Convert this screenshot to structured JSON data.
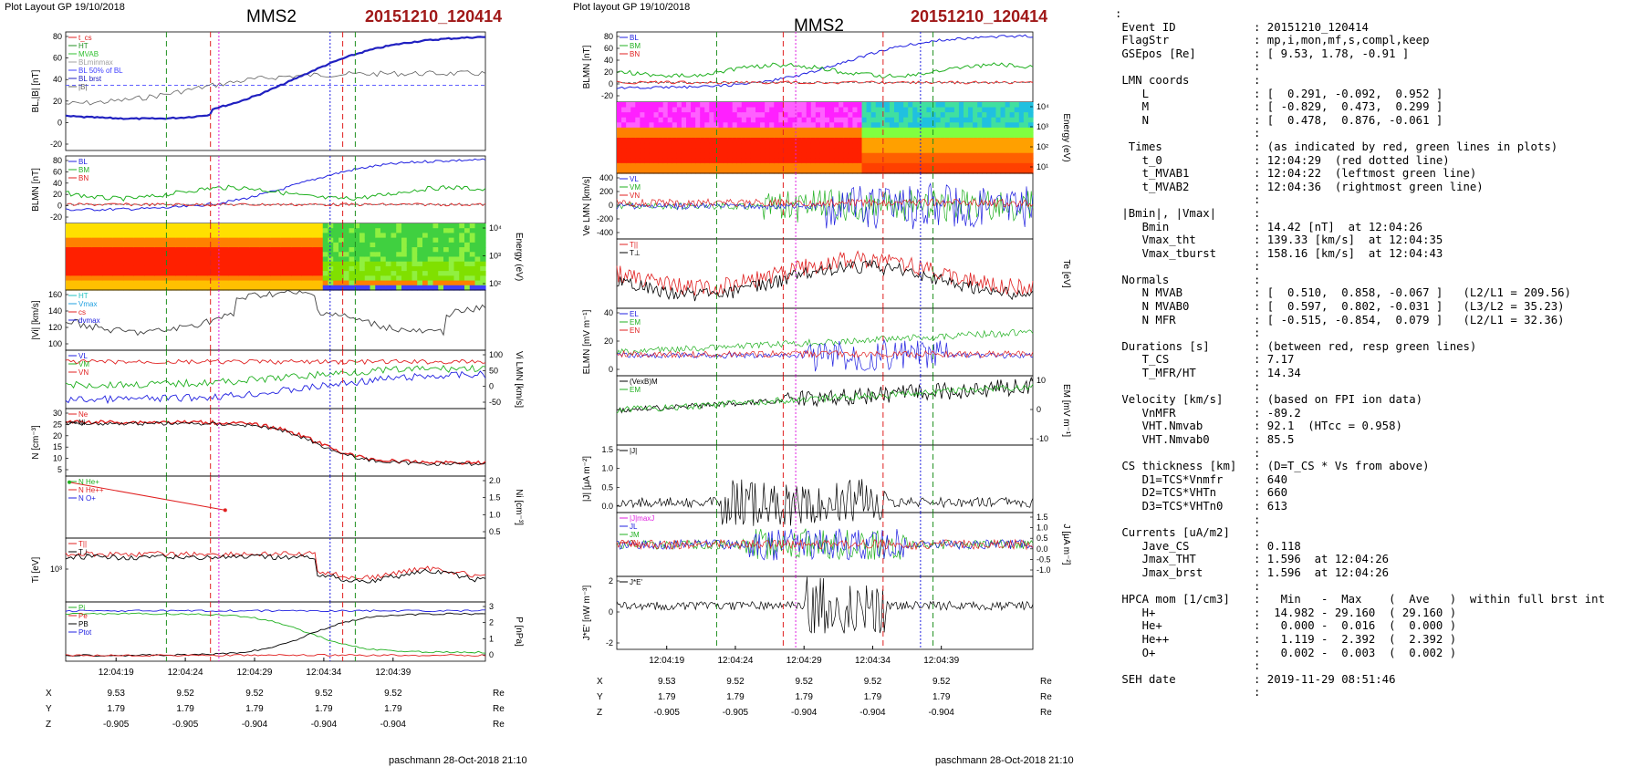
{
  "left_panel": {
    "header": "Plot Layout GP 19/10/2018",
    "spacecraft": "MMS2",
    "event": "20151210_120414",
    "footer": "paschmann 28-Oct-2018 21:10",
    "time_ticks": [
      "12:04:19",
      "12:04:24",
      "12:04:29",
      "12:04:34",
      "12:04:39"
    ],
    "ephem": [
      {
        "label": "X",
        "values": [
          "9.53",
          "9.52",
          "9.52",
          "9.52",
          "9.52"
        ],
        "unit": "Re"
      },
      {
        "label": "Y",
        "values": [
          "1.79",
          "1.79",
          "1.79",
          "1.79",
          "1.79"
        ],
        "unit": "Re"
      },
      {
        "label": "Z",
        "values": [
          "-0.905",
          "-0.905",
          "-0.904",
          "-0.904",
          "-0.904"
        ],
        "unit": "Re"
      }
    ],
    "panels": [
      {
        "id": "bl",
        "ylabel": "BL,|B| [nT]",
        "ticks": [
          "80",
          "60",
          "40",
          "20",
          "0",
          "-20"
        ],
        "legend": [
          {
            "text": "t_cs",
            "color": "#e02020"
          },
          {
            "text": "HT",
            "color": "#209020"
          },
          {
            "text": "MVAB",
            "color": "#30c030"
          },
          {
            "text": "BLminmax",
            "color": "#a0a0a0"
          },
          {
            "text": "BL 50% of BL",
            "color": "#4040ff"
          },
          {
            "text": "BL brst",
            "color": "#2020c0"
          },
          {
            "text": "|B|",
            "color": "#606060"
          }
        ]
      },
      {
        "id": "blmn",
        "ylabel": "BLMN [nT]",
        "ticks": [
          "80",
          "60",
          "40",
          "20",
          "0",
          "-20"
        ],
        "legend": [
          {
            "text": "BL",
            "color": "#2020e0"
          },
          {
            "text": "BM",
            "color": "#20b020"
          },
          {
            "text": "BN",
            "color": "#e02020"
          }
        ]
      },
      {
        "id": "spec",
        "ylabel": "Energy (eV)",
        "ticks": [
          "10⁴",
          "10³",
          "10²"
        ],
        "legend": []
      },
      {
        "id": "vi",
        "ylabel": "|Vi| [km/s]",
        "ticks": [
          "160",
          "140",
          "120",
          "100"
        ],
        "legend": [
          {
            "text": "HT",
            "color": "#20c0c0"
          },
          {
            "text": "Vmax",
            "color": "#20a0e0"
          },
          {
            "text": "cs",
            "color": "#e02020"
          },
          {
            "text": "dvmax",
            "color": "#2020e0"
          }
        ]
      },
      {
        "id": "vilmn",
        "ylabel": "Vi LMN [km/s]",
        "ticks": [
          "100",
          "50",
          "0",
          "-50"
        ],
        "legend": [
          {
            "text": "VL",
            "color": "#2020e0"
          },
          {
            "text": "VM",
            "color": "#20b020"
          },
          {
            "text": "VN",
            "color": "#e02020"
          }
        ]
      },
      {
        "id": "n",
        "ylabel": "N [cm⁻³]",
        "ticks": [
          "30",
          "25",
          "20",
          "15",
          "10",
          "5"
        ],
        "legend": [
          {
            "text": "Ne",
            "color": "#e02020"
          },
          {
            "text": "Ni",
            "color": "#000000"
          }
        ]
      },
      {
        "id": "ni",
        "ylabel": "Ni [cm⁻³]",
        "ticks": [
          "2.0",
          "1.5",
          "1.0",
          "0.5"
        ],
        "legend": [
          {
            "text": "N He+",
            "color": "#20b020"
          },
          {
            "text": "N He++",
            "color": "#e02020"
          },
          {
            "text": "N O+",
            "color": "#2020e0"
          }
        ]
      },
      {
        "id": "ti",
        "ylabel": "Ti [eV]",
        "ticks": [
          "10³"
        ],
        "legend": [
          {
            "text": "T||",
            "color": "#e02020"
          },
          {
            "text": "T⊥",
            "color": "#000000"
          }
        ]
      },
      {
        "id": "p",
        "ylabel": "P [nPa]",
        "ticks": [
          "3",
          "2",
          "1",
          "0"
        ],
        "legend": [
          {
            "text": "Pi",
            "color": "#20b020"
          },
          {
            "text": "Pe",
            "color": "#e02020"
          },
          {
            "text": "PB",
            "color": "#000000"
          },
          {
            "text": "Ptot",
            "color": "#2020e0"
          }
        ]
      }
    ]
  },
  "middle_panel": {
    "header": "Plot layout GP 19/10/2018",
    "spacecraft": "MMS2",
    "event": "20151210_120414",
    "footer": "paschmann 28-Oct-2018 21:10",
    "time_ticks": [
      "12:04:19",
      "12:04:24",
      "12:04:29",
      "12:04:34",
      "12:04:39"
    ],
    "ephem": [
      {
        "label": "X",
        "values": [
          "9.53",
          "9.52",
          "9.52",
          "9.52",
          "9.52"
        ],
        "unit": "Re"
      },
      {
        "label": "Y",
        "values": [
          "1.79",
          "1.79",
          "1.79",
          "1.79",
          "1.79"
        ],
        "unit": "Re"
      },
      {
        "label": "Z",
        "values": [
          "-0.905",
          "-0.905",
          "-0.904",
          "-0.904",
          "-0.904"
        ],
        "unit": "Re"
      }
    ],
    "panels": [
      {
        "id": "blmn",
        "ylabel": "BLMN [nT]",
        "ticks": [
          "80",
          "60",
          "40",
          "20",
          "0",
          "-20"
        ],
        "legend": [
          {
            "text": "BL",
            "color": "#2020e0"
          },
          {
            "text": "BM",
            "color": "#20b020"
          },
          {
            "text": "BN",
            "color": "#e02020"
          }
        ]
      },
      {
        "id": "espec",
        "ylabel": "Energy (eV)",
        "ticks": [
          "10⁴",
          "10³",
          "10²",
          "10¹"
        ],
        "legend": []
      },
      {
        "id": "ve",
        "ylabel": "Ve LMN [km/s]",
        "ticks": [
          "400",
          "200",
          "0",
          "-200",
          "-400"
        ],
        "legend": [
          {
            "text": "VL",
            "color": "#2020e0"
          },
          {
            "text": "VM",
            "color": "#20b020"
          },
          {
            "text": "VN",
            "color": "#e02020"
          }
        ]
      },
      {
        "id": "te",
        "ylabel": "Te [eV]",
        "ticks": [],
        "legend": [
          {
            "text": "T||",
            "color": "#e02020"
          },
          {
            "text": "T⊥",
            "color": "#000000"
          }
        ]
      },
      {
        "id": "e",
        "ylabel": "ELMN [mV m⁻¹]",
        "ticks": [
          "40",
          "20",
          "0"
        ],
        "legend": [
          {
            "text": "EL",
            "color": "#2020e0"
          },
          {
            "text": "EM",
            "color": "#20b020"
          },
          {
            "text": "EN",
            "color": "#e02020"
          }
        ]
      },
      {
        "id": "em",
        "ylabel": "EM [mV m⁻¹]",
        "ticks": [
          "10",
          "0",
          "-10"
        ],
        "legend": [
          {
            "text": "(VexB)M",
            "color": "#000000"
          },
          {
            "text": "EM",
            "color": "#20b020"
          }
        ]
      },
      {
        "id": "j",
        "ylabel": "|J| [μA m⁻²]",
        "ticks": [
          "1.5",
          "1.0",
          "0.5",
          "0.0"
        ],
        "legend": [
          {
            "text": "|J|",
            "color": "#000000"
          }
        ]
      },
      {
        "id": "jlmn",
        "ylabel": "J [μA m⁻²]",
        "ticks": [
          "1.5",
          "1.0",
          "0.5",
          "0.0",
          "-0.5",
          "-1.0"
        ],
        "legend": [
          {
            "text": "|J|maxJ",
            "color": "#e020e0"
          },
          {
            "text": "JL",
            "color": "#2020e0"
          },
          {
            "text": "JM",
            "color": "#20b020"
          },
          {
            "text": "JN",
            "color": "#e02020"
          }
        ]
      },
      {
        "id": "je",
        "ylabel": "J*E' [nW m⁻³]",
        "ticks": [
          "2",
          "0",
          "-2"
        ],
        "legend": [
          {
            "text": "J*E'",
            "color": "#000000"
          }
        ]
      }
    ]
  },
  "info": {
    "colon_top": ":",
    "lines": [
      [
        "Event ID",
        ": 20151210_120414"
      ],
      [
        "FlagStr",
        ": mp,i,mon,mf,s,compl,keep"
      ],
      [
        "GSEpos [Re]",
        ": [ 9.53, 1.78, -0.91 ]"
      ],
      [
        "",
        ":"
      ],
      [
        "LMN coords",
        ":"
      ],
      [
        "   L",
        ": [  0.291, -0.092,  0.952 ]"
      ],
      [
        "   M",
        ": [ -0.829,  0.473,  0.299 ]"
      ],
      [
        "   N",
        ": [  0.478,  0.876, -0.061 ]"
      ],
      [
        "",
        ":"
      ],
      [
        " Times",
        ": (as indicated by red, green lines in plots)"
      ],
      [
        "   t_0",
        ": 12:04:29  (red dotted line)"
      ],
      [
        "   t_MVAB1",
        ": 12:04:22  (leftmost green line)"
      ],
      [
        "   t_MVAB2",
        ": 12:04:36  (rightmost green line)"
      ],
      [
        "",
        ":"
      ],
      [
        "|Bmin|, |Vmax|",
        ":"
      ],
      [
        "   Bmin",
        ": 14.42 [nT]  at 12:04:26"
      ],
      [
        "   Vmax_tht",
        ": 139.33 [km/s]  at 12:04:35"
      ],
      [
        "   Vmax_tburst",
        ": 158.16 [km/s]  at 12:04:43"
      ],
      [
        "",
        ":"
      ],
      [
        "Normals",
        ":"
      ],
      [
        "   N MVAB",
        ": [  0.510,  0.858, -0.067 ]   (L2/L1 = 209.56)"
      ],
      [
        "   N MVAB0",
        ": [  0.597,  0.802, -0.031 ]   (L3/L2 = 35.23)"
      ],
      [
        "   N MFR",
        ": [ -0.515, -0.854,  0.079 ]   (L2/L1 = 32.36)"
      ],
      [
        "",
        ":"
      ],
      [
        "Durations [s]",
        ": (between red, resp green lines)"
      ],
      [
        "   T_CS",
        ": 7.17"
      ],
      [
        "   T_MFR/HT",
        ": 14.34"
      ],
      [
        "",
        ":"
      ],
      [
        "Velocity [km/s]",
        ": (based on FPI ion data)"
      ],
      [
        "   VnMFR",
        ": -89.2"
      ],
      [
        "   VHT.Nmvab",
        ": 92.1  (HTcc = 0.958)"
      ],
      [
        "   VHT.Nmvab0",
        ": 85.5"
      ],
      [
        "",
        ":"
      ],
      [
        "CS thickness [km]",
        ": (D=T_CS * Vs from above)"
      ],
      [
        "   D1=TCS*Vnmfr",
        ": 640"
      ],
      [
        "   D2=TCS*VHTn",
        ": 660"
      ],
      [
        "   D3=TCS*VHTn0",
        ": 613"
      ],
      [
        "",
        ":"
      ],
      [
        "Currents [uA/m2]",
        ":"
      ],
      [
        "   Jave_CS",
        ": 0.118"
      ],
      [
        "   Jmax_THT",
        ": 1.596  at 12:04:26"
      ],
      [
        "   Jmax_brst",
        ": 1.596  at 12:04:26"
      ],
      [
        "",
        ":"
      ],
      [
        "HPCA mom [1/cm3]",
        ":   Min   -  Max    (  Ave   )  within full brst int"
      ],
      [
        "   H+",
        ":  14.982 - 29.160  ( 29.160 )"
      ],
      [
        "   He+",
        ":   0.000 -  0.016  (  0.000 )"
      ],
      [
        "   He++",
        ":   1.119 -  2.392  (  2.392 )"
      ],
      [
        "   O+",
        ":   0.002 -  0.003  (  0.002 )"
      ],
      [
        "",
        ":"
      ],
      [
        "SEH date",
        ": 2019-11-29 08:51:46"
      ],
      [
        "",
        ":"
      ]
    ]
  },
  "colors": {
    "red": "#e02020",
    "green": "#20b020",
    "blue": "#2020e0",
    "magenta": "#e020e0",
    "black": "#000000",
    "title_red": "#a01818"
  }
}
